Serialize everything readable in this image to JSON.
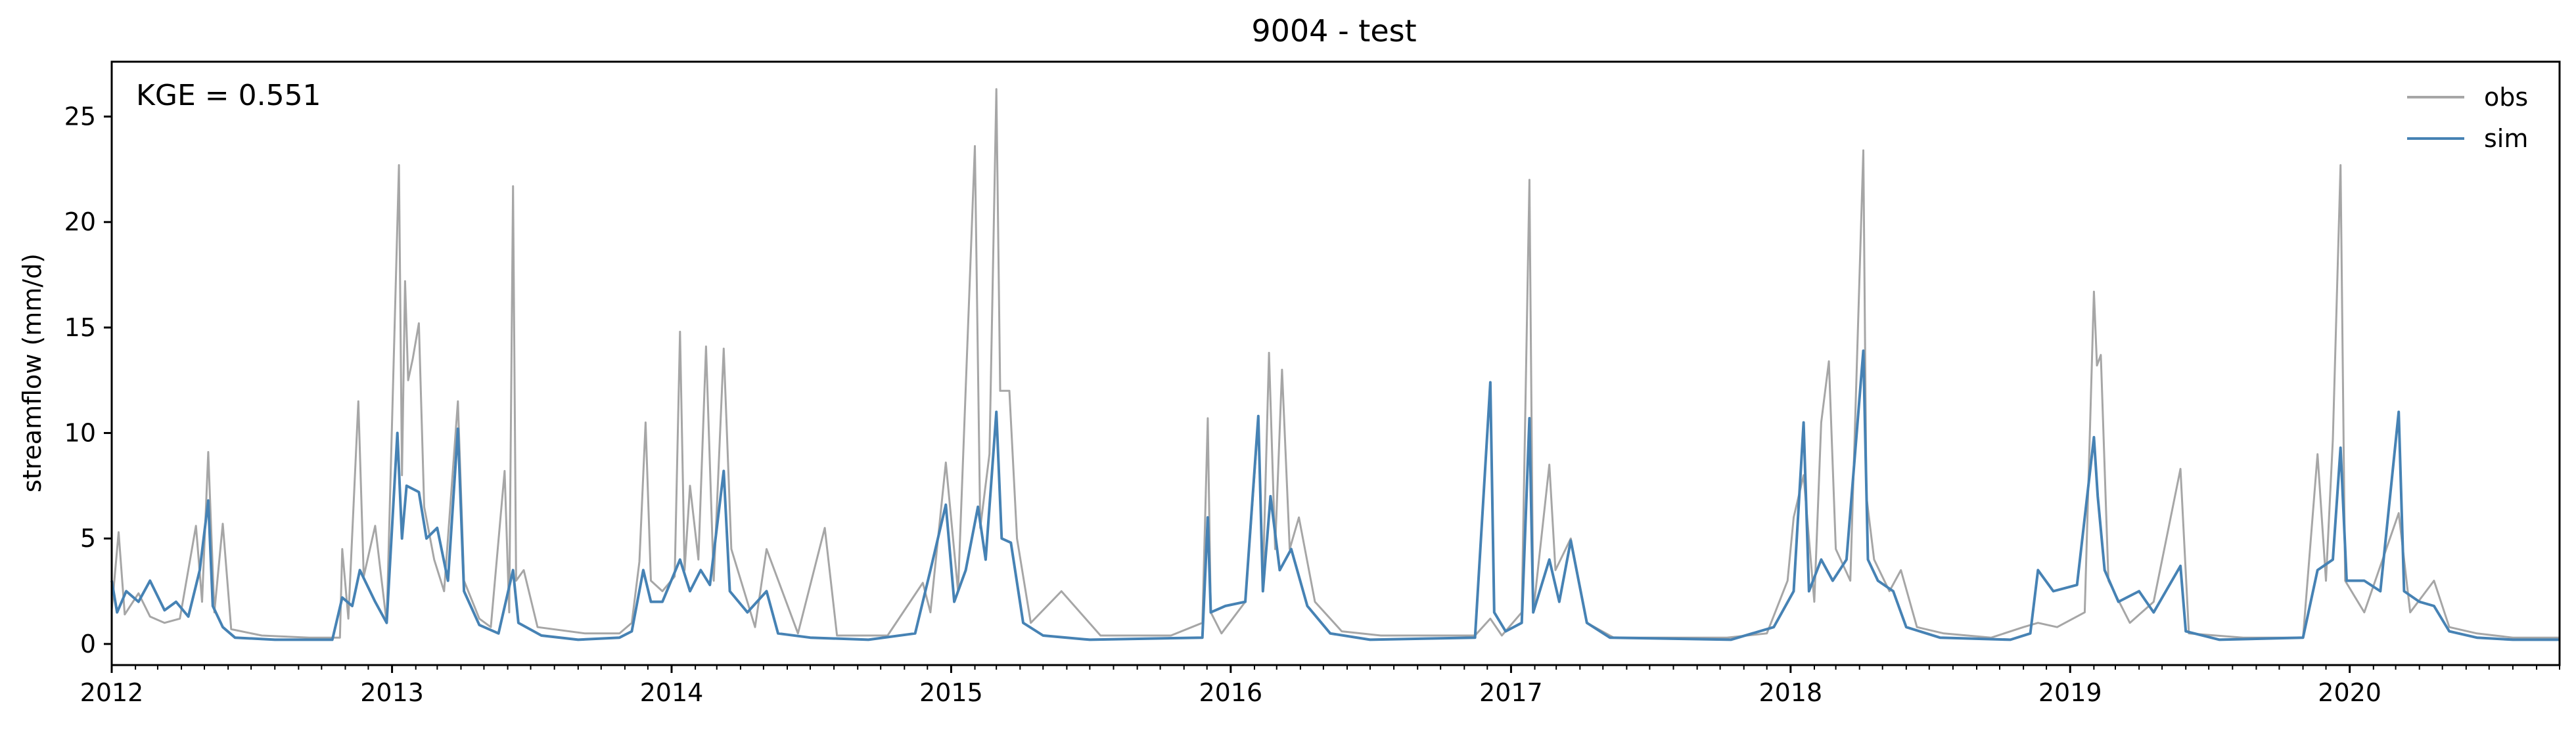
{
  "chart_data": {
    "type": "line",
    "title": "9004 - test",
    "xlabel": "",
    "ylabel": "streamflow (mm/d)",
    "annotation": "KGE = 0.551",
    "xlim": [
      "2012-01-01",
      "2020-10-01"
    ],
    "ylim": [
      -1.0,
      27.6
    ],
    "x_ticks": [
      "2012",
      "2013",
      "2014",
      "2015",
      "2016",
      "2017",
      "2018",
      "2019",
      "2020"
    ],
    "y_ticks": [
      0,
      5,
      10,
      15,
      20,
      25
    ],
    "grid": false,
    "legend": "top-right",
    "series": [
      {
        "name": "obs",
        "color": "#a6a6a6",
        "points": [
          [
            "2012-01-01",
            1.6
          ],
          [
            "2012-01-10",
            5.3
          ],
          [
            "2012-01-18",
            1.4
          ],
          [
            "2012-02-05",
            2.4
          ],
          [
            "2012-02-20",
            1.3
          ],
          [
            "2012-03-10",
            1.0
          ],
          [
            "2012-03-30",
            1.2
          ],
          [
            "2012-04-20",
            5.6
          ],
          [
            "2012-04-28",
            2.0
          ],
          [
            "2012-05-06",
            9.1
          ],
          [
            "2012-05-14",
            1.5
          ],
          [
            "2012-05-25",
            5.7
          ],
          [
            "2012-06-05",
            0.7
          ],
          [
            "2012-07-15",
            0.4
          ],
          [
            "2012-09-15",
            0.3
          ],
          [
            "2012-10-25",
            0.3
          ],
          [
            "2012-10-28",
            4.5
          ],
          [
            "2012-11-05",
            1.2
          ],
          [
            "2012-11-18",
            11.5
          ],
          [
            "2012-11-25",
            3.2
          ],
          [
            "2012-12-10",
            5.6
          ],
          [
            "2012-12-25",
            1.0
          ],
          [
            "2013-01-10",
            22.7
          ],
          [
            "2013-01-14",
            8.0
          ],
          [
            "2013-01-18",
            17.2
          ],
          [
            "2013-01-22",
            12.5
          ],
          [
            "2013-01-28",
            13.5
          ],
          [
            "2013-02-05",
            15.2
          ],
          [
            "2013-02-12",
            6.5
          ],
          [
            "2013-02-25",
            4.0
          ],
          [
            "2013-03-10",
            2.5
          ],
          [
            "2013-03-28",
            11.5
          ],
          [
            "2013-04-05",
            3.0
          ],
          [
            "2013-04-25",
            1.2
          ],
          [
            "2013-05-10",
            0.8
          ],
          [
            "2013-05-28",
            8.2
          ],
          [
            "2013-06-03",
            1.5
          ],
          [
            "2013-06-08",
            21.7
          ],
          [
            "2013-06-12",
            3.0
          ],
          [
            "2013-06-22",
            3.5
          ],
          [
            "2013-07-10",
            0.8
          ],
          [
            "2013-09-10",
            0.5
          ],
          [
            "2013-10-25",
            0.5
          ],
          [
            "2013-11-10",
            1.0
          ],
          [
            "2013-11-20",
            3.9
          ],
          [
            "2013-11-28",
            10.5
          ],
          [
            "2013-12-05",
            3.0
          ],
          [
            "2013-12-20",
            2.5
          ],
          [
            "2014-01-05",
            3.2
          ],
          [
            "2014-01-12",
            14.8
          ],
          [
            "2014-01-18",
            3.5
          ],
          [
            "2014-01-25",
            7.5
          ],
          [
            "2014-02-05",
            4.0
          ],
          [
            "2014-02-15",
            14.1
          ],
          [
            "2014-02-25",
            3.0
          ],
          [
            "2014-03-10",
            14.0
          ],
          [
            "2014-03-20",
            4.5
          ],
          [
            "2014-04-20",
            0.8
          ],
          [
            "2014-05-05",
            4.5
          ],
          [
            "2014-06-15",
            0.5
          ],
          [
            "2014-07-20",
            5.5
          ],
          [
            "2014-08-05",
            0.4
          ],
          [
            "2014-10-10",
            0.4
          ],
          [
            "2014-11-25",
            2.9
          ],
          [
            "2014-12-05",
            1.5
          ],
          [
            "2014-12-25",
            8.6
          ],
          [
            "2015-01-10",
            2.5
          ],
          [
            "2015-02-01",
            23.6
          ],
          [
            "2015-02-08",
            5.5
          ],
          [
            "2015-02-20",
            9.0
          ],
          [
            "2015-03-01",
            26.3
          ],
          [
            "2015-03-06",
            12.0
          ],
          [
            "2015-03-18",
            12.0
          ],
          [
            "2015-03-28",
            5.0
          ],
          [
            "2015-04-15",
            1.0
          ],
          [
            "2015-05-25",
            2.5
          ],
          [
            "2015-07-15",
            0.4
          ],
          [
            "2015-10-15",
            0.4
          ],
          [
            "2015-11-25",
            1.0
          ],
          [
            "2015-12-02",
            10.7
          ],
          [
            "2015-12-06",
            1.5
          ],
          [
            "2015-12-20",
            0.5
          ],
          [
            "2016-01-20",
            2.0
          ],
          [
            "2016-02-06",
            10.5
          ],
          [
            "2016-02-12",
            3.0
          ],
          [
            "2016-02-20",
            13.8
          ],
          [
            "2016-02-28",
            4.5
          ],
          [
            "2016-03-08",
            13.0
          ],
          [
            "2016-03-18",
            4.5
          ],
          [
            "2016-03-30",
            6.0
          ],
          [
            "2016-04-20",
            2.0
          ],
          [
            "2016-05-25",
            0.6
          ],
          [
            "2016-07-15",
            0.4
          ],
          [
            "2016-11-15",
            0.4
          ],
          [
            "2016-12-05",
            1.2
          ],
          [
            "2016-12-20",
            0.4
          ],
          [
            "2017-01-15",
            1.5
          ],
          [
            "2017-01-25",
            22.0
          ],
          [
            "2017-01-30",
            1.5
          ],
          [
            "2017-02-20",
            8.5
          ],
          [
            "2017-02-28",
            3.5
          ],
          [
            "2017-03-20",
            5.0
          ],
          [
            "2017-04-10",
            1.0
          ],
          [
            "2017-05-15",
            0.3
          ],
          [
            "2017-10-10",
            0.3
          ],
          [
            "2017-12-01",
            0.5
          ],
          [
            "2017-12-28",
            3.0
          ],
          [
            "2018-01-05",
            6.0
          ],
          [
            "2018-01-18",
            8.0
          ],
          [
            "2018-02-01",
            2.0
          ],
          [
            "2018-02-10",
            10.5
          ],
          [
            "2018-02-20",
            13.4
          ],
          [
            "2018-03-01",
            4.5
          ],
          [
            "2018-03-20",
            3.0
          ],
          [
            "2018-04-06",
            23.4
          ],
          [
            "2018-04-10",
            7.0
          ],
          [
            "2018-04-20",
            4.0
          ],
          [
            "2018-05-10",
            2.5
          ],
          [
            "2018-05-25",
            3.5
          ],
          [
            "2018-06-15",
            0.8
          ],
          [
            "2018-07-20",
            0.5
          ],
          [
            "2018-09-20",
            0.3
          ],
          [
            "2018-11-01",
            0.8
          ],
          [
            "2018-11-20",
            1.0
          ],
          [
            "2018-12-15",
            0.8
          ],
          [
            "2019-01-20",
            1.5
          ],
          [
            "2019-02-01",
            16.7
          ],
          [
            "2019-02-05",
            13.2
          ],
          [
            "2019-02-10",
            13.7
          ],
          [
            "2019-02-20",
            3.0
          ],
          [
            "2019-03-20",
            1.0
          ],
          [
            "2019-04-20",
            2.0
          ],
          [
            "2019-05-25",
            8.3
          ],
          [
            "2019-06-05",
            0.5
          ],
          [
            "2019-08-15",
            0.3
          ],
          [
            "2019-11-01",
            0.3
          ],
          [
            "2019-11-20",
            9.0
          ],
          [
            "2019-12-01",
            3.0
          ],
          [
            "2019-12-10",
            9.7
          ],
          [
            "2019-12-20",
            22.7
          ],
          [
            "2019-12-26",
            3.0
          ],
          [
            "2020-01-20",
            1.5
          ],
          [
            "2020-03-05",
            6.2
          ],
          [
            "2020-03-20",
            1.5
          ],
          [
            "2020-04-20",
            3.0
          ],
          [
            "2020-05-10",
            0.8
          ],
          [
            "2020-06-15",
            0.5
          ],
          [
            "2020-08-01",
            0.3
          ],
          [
            "2020-09-30",
            0.3
          ]
        ]
      },
      {
        "name": "sim",
        "color": "#4682b4",
        "points": [
          [
            "2012-01-01",
            3.0
          ],
          [
            "2012-01-08",
            1.5
          ],
          [
            "2012-01-20",
            2.5
          ],
          [
            "2012-02-05",
            2.0
          ],
          [
            "2012-02-20",
            3.0
          ],
          [
            "2012-03-10",
            1.6
          ],
          [
            "2012-03-25",
            2.0
          ],
          [
            "2012-04-10",
            1.3
          ],
          [
            "2012-04-25",
            3.5
          ],
          [
            "2012-05-06",
            6.8
          ],
          [
            "2012-05-12",
            1.8
          ],
          [
            "2012-05-25",
            0.8
          ],
          [
            "2012-06-10",
            0.3
          ],
          [
            "2012-08-01",
            0.2
          ],
          [
            "2012-10-15",
            0.2
          ],
          [
            "2012-10-28",
            2.2
          ],
          [
            "2012-11-10",
            1.8
          ],
          [
            "2012-11-20",
            3.5
          ],
          [
            "2012-12-10",
            2.0
          ],
          [
            "2012-12-25",
            1.0
          ],
          [
            "2013-01-08",
            10.0
          ],
          [
            "2013-01-14",
            5.0
          ],
          [
            "2013-01-20",
            7.5
          ],
          [
            "2013-02-05",
            7.2
          ],
          [
            "2013-02-15",
            5.0
          ],
          [
            "2013-03-01",
            5.5
          ],
          [
            "2013-03-15",
            3.0
          ],
          [
            "2013-03-28",
            10.2
          ],
          [
            "2013-04-05",
            2.5
          ],
          [
            "2013-04-25",
            0.9
          ],
          [
            "2013-05-20",
            0.5
          ],
          [
            "2013-06-08",
            3.5
          ],
          [
            "2013-06-15",
            1.0
          ],
          [
            "2013-07-15",
            0.4
          ],
          [
            "2013-09-01",
            0.2
          ],
          [
            "2013-10-25",
            0.3
          ],
          [
            "2013-11-10",
            0.6
          ],
          [
            "2013-11-25",
            3.5
          ],
          [
            "2013-12-05",
            2.0
          ],
          [
            "2013-12-20",
            2.0
          ],
          [
            "2014-01-12",
            4.0
          ],
          [
            "2014-01-25",
            2.5
          ],
          [
            "2014-02-08",
            3.5
          ],
          [
            "2014-02-20",
            2.8
          ],
          [
            "2014-03-10",
            8.2
          ],
          [
            "2014-03-18",
            2.5
          ],
          [
            "2014-04-10",
            1.5
          ],
          [
            "2014-05-05",
            2.5
          ],
          [
            "2014-05-20",
            0.5
          ],
          [
            "2014-07-01",
            0.3
          ],
          [
            "2014-09-15",
            0.2
          ],
          [
            "2014-11-15",
            0.5
          ],
          [
            "2014-12-05",
            3.5
          ],
          [
            "2014-12-25",
            6.6
          ],
          [
            "2015-01-05",
            2.0
          ],
          [
            "2015-01-20",
            3.5
          ],
          [
            "2015-02-05",
            6.5
          ],
          [
            "2015-02-15",
            4.0
          ],
          [
            "2015-03-01",
            11.0
          ],
          [
            "2015-03-08",
            5.0
          ],
          [
            "2015-03-20",
            4.8
          ],
          [
            "2015-04-05",
            1.0
          ],
          [
            "2015-05-01",
            0.4
          ],
          [
            "2015-07-01",
            0.2
          ],
          [
            "2015-11-25",
            0.3
          ],
          [
            "2015-12-02",
            6.0
          ],
          [
            "2015-12-06",
            1.5
          ],
          [
            "2015-12-25",
            1.8
          ],
          [
            "2016-01-20",
            2.0
          ],
          [
            "2016-02-06",
            10.8
          ],
          [
            "2016-02-12",
            2.5
          ],
          [
            "2016-02-22",
            7.0
          ],
          [
            "2016-03-05",
            3.5
          ],
          [
            "2016-03-20",
            4.5
          ],
          [
            "2016-04-10",
            1.8
          ],
          [
            "2016-05-10",
            0.5
          ],
          [
            "2016-07-01",
            0.2
          ],
          [
            "2016-11-15",
            0.3
          ],
          [
            "2016-12-05",
            12.4
          ],
          [
            "2016-12-10",
            1.5
          ],
          [
            "2016-12-25",
            0.6
          ],
          [
            "2017-01-15",
            1.0
          ],
          [
            "2017-01-25",
            10.7
          ],
          [
            "2017-01-30",
            1.5
          ],
          [
            "2017-02-20",
            4.0
          ],
          [
            "2017-03-05",
            2.0
          ],
          [
            "2017-03-20",
            4.9
          ],
          [
            "2017-04-10",
            1.0
          ],
          [
            "2017-05-10",
            0.3
          ],
          [
            "2017-10-15",
            0.2
          ],
          [
            "2017-12-10",
            0.8
          ],
          [
            "2018-01-05",
            2.5
          ],
          [
            "2018-01-18",
            10.5
          ],
          [
            "2018-01-25",
            2.5
          ],
          [
            "2018-02-10",
            4.0
          ],
          [
            "2018-02-25",
            3.0
          ],
          [
            "2018-03-15",
            4.0
          ],
          [
            "2018-04-06",
            13.9
          ],
          [
            "2018-04-12",
            4.0
          ],
          [
            "2018-04-25",
            3.0
          ],
          [
            "2018-05-15",
            2.5
          ],
          [
            "2018-06-01",
            0.8
          ],
          [
            "2018-07-15",
            0.3
          ],
          [
            "2018-10-15",
            0.2
          ],
          [
            "2018-11-10",
            0.5
          ],
          [
            "2018-11-20",
            3.5
          ],
          [
            "2018-12-10",
            2.5
          ],
          [
            "2019-01-10",
            2.8
          ],
          [
            "2019-02-01",
            9.8
          ],
          [
            "2019-02-06",
            7.0
          ],
          [
            "2019-02-15",
            3.5
          ],
          [
            "2019-03-05",
            2.0
          ],
          [
            "2019-04-01",
            2.5
          ],
          [
            "2019-04-20",
            1.5
          ],
          [
            "2019-05-25",
            3.7
          ],
          [
            "2019-06-01",
            0.6
          ],
          [
            "2019-07-15",
            0.2
          ],
          [
            "2019-11-01",
            0.3
          ],
          [
            "2019-11-20",
            3.5
          ],
          [
            "2019-12-10",
            4.0
          ],
          [
            "2019-12-20",
            9.3
          ],
          [
            "2019-12-28",
            3.0
          ],
          [
            "2020-01-20",
            3.0
          ],
          [
            "2020-02-10",
            2.5
          ],
          [
            "2020-03-05",
            11.0
          ],
          [
            "2020-03-12",
            2.5
          ],
          [
            "2020-04-01",
            2.0
          ],
          [
            "2020-04-20",
            1.8
          ],
          [
            "2020-05-10",
            0.6
          ],
          [
            "2020-06-15",
            0.3
          ],
          [
            "2020-08-01",
            0.2
          ],
          [
            "2020-09-30",
            0.2
          ]
        ]
      }
    ]
  }
}
